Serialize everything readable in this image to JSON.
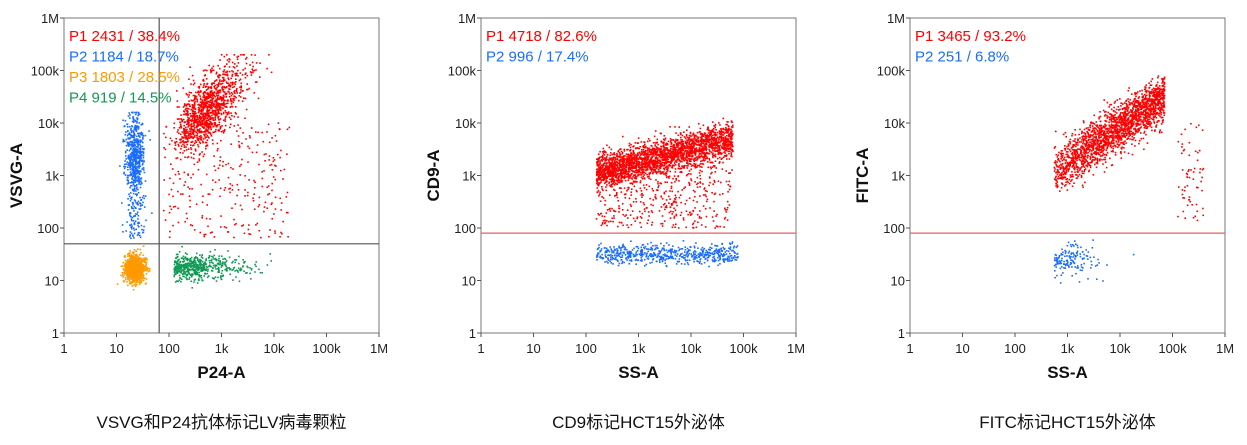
{
  "chart_data": [
    {
      "type": "scatter",
      "xlabel": "P24-A",
      "ylabel": "VSVG-A",
      "caption": "VSVG和P24抗体标记LV病毒颗粒",
      "xscale": "log",
      "yscale": "log",
      "xlim": [
        1,
        1000000
      ],
      "ylim": [
        1,
        1000000
      ],
      "tick_labels": [
        "1",
        "10",
        "100",
        "1k",
        "10k",
        "100k",
        "1M"
      ],
      "gates": {
        "vertical_x": 65,
        "horizontal_y": 50,
        "color": "#555555"
      },
      "populations": [
        {
          "name": "P1",
          "label": "P1  2431 / 38.4%",
          "count": 2431,
          "percent": 38.4,
          "color": "#ff0000",
          "x_range": [
            70,
            20000
          ],
          "y_range": [
            60,
            200000
          ]
        },
        {
          "name": "P2",
          "label": "P2  1184 / 18.7%",
          "count": 1184,
          "percent": 18.7,
          "color": "#1a6dff",
          "x_range": [
            8,
            50
          ],
          "y_range": [
            60,
            16000
          ]
        },
        {
          "name": "P3",
          "label": "P3  1803 / 28.5%",
          "count": 1803,
          "percent": 28.5,
          "color": "#ff9900",
          "x_range": [
            8,
            65
          ],
          "y_range": [
            5,
            45
          ]
        },
        {
          "name": "P4",
          "label": "P4  919 / 14.5%",
          "count": 919,
          "percent": 14.5,
          "color": "#119955",
          "x_range": [
            65,
            10000
          ],
          "y_range": [
            5,
            45
          ]
        }
      ]
    },
    {
      "type": "scatter",
      "xlabel": "SS-A",
      "ylabel": "CD9-A",
      "caption": "CD9标记HCT15外泌体",
      "xscale": "log",
      "yscale": "log",
      "xlim": [
        1,
        1000000
      ],
      "ylim": [
        1,
        1000000
      ],
      "tick_labels": [
        "1",
        "10",
        "100",
        "1k",
        "10k",
        "100k",
        "1M"
      ],
      "gates": {
        "horizontal_y": 80,
        "color": "#e06060"
      },
      "populations": [
        {
          "name": "P1",
          "label": "P1  4718 / 82.6%",
          "count": 4718,
          "percent": 82.6,
          "color": "#ff0000",
          "x_range": [
            150,
            100000
          ],
          "y_range": [
            90,
            60000
          ]
        },
        {
          "name": "P2",
          "label": "P2  996 / 17.4%",
          "count": 996,
          "percent": 17.4,
          "color": "#1a6dff",
          "x_range": [
            150,
            100000
          ],
          "y_range": [
            10,
            75
          ]
        }
      ]
    },
    {
      "type": "scatter",
      "xlabel": "SS-A",
      "ylabel": "FITC-A",
      "caption": "FITC标记HCT15外泌体",
      "xscale": "log",
      "yscale": "log",
      "xlim": [
        1,
        1000000
      ],
      "ylim": [
        1,
        1000000
      ],
      "tick_labels": [
        "1",
        "10",
        "100",
        "1k",
        "10k",
        "100k",
        "1M"
      ],
      "gates": {
        "horizontal_y": 80,
        "color": "#e06060"
      },
      "populations": [
        {
          "name": "P1",
          "label": "P1  3465 / 93.2%",
          "count": 3465,
          "percent": 93.2,
          "color": "#ff0000",
          "x_range": [
            550,
            400000
          ],
          "y_range": [
            100,
            250000
          ]
        },
        {
          "name": "P2",
          "label": "P2  251 / 6.8%",
          "count": 251,
          "percent": 6.8,
          "color": "#1a6dff",
          "x_range": [
            550,
            60000
          ],
          "y_range": [
            9,
            75
          ]
        }
      ]
    }
  ]
}
